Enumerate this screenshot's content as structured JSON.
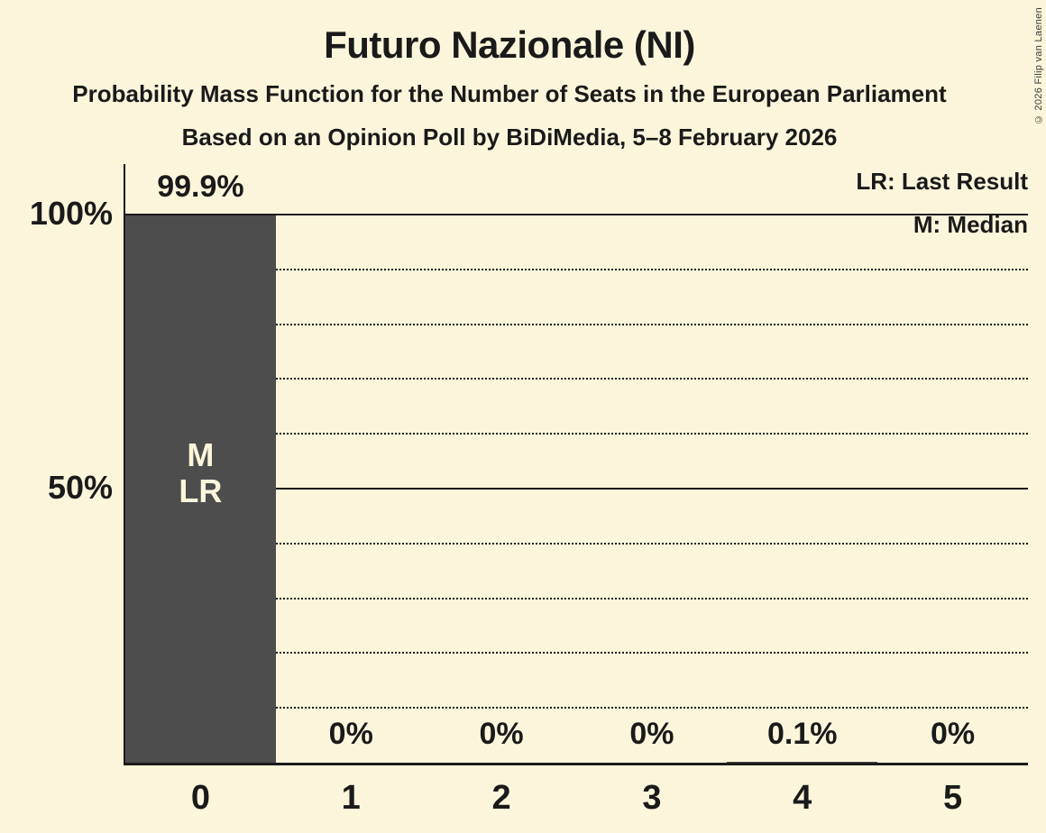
{
  "header": {
    "title": "Futuro Nazionale (NI)",
    "subtitle": "Probability Mass Function for the Number of Seats in the European Parliament",
    "poll_line": "Based on an Opinion Poll by BiDiMedia, 5–8 February 2026",
    "copyright": "© 2026 Filip van Laenen"
  },
  "legend": {
    "last_result": "LR: Last Result",
    "median": "M: Median"
  },
  "colors": {
    "background": "#FBF6DB",
    "bar": "#4D4D4D",
    "text": "#1A1A1A",
    "bar_label_text": "#FBF6DB"
  },
  "chart_data": {
    "type": "bar",
    "title": "Futuro Nazionale (NI)",
    "categories": [
      "0",
      "1",
      "2",
      "3",
      "4",
      "5"
    ],
    "values": [
      99.9,
      0,
      0,
      0,
      0.1,
      0
    ],
    "value_labels": [
      "99.9%",
      "0%",
      "0%",
      "0%",
      "0.1%",
      "0%"
    ],
    "ylim": [
      0,
      100
    ],
    "y_ticks": [
      {
        "value": 100,
        "label": "100%"
      },
      {
        "value": 50,
        "label": "50%"
      }
    ],
    "gridlines": {
      "step": 10,
      "solid_at": [
        50,
        100
      ],
      "minor_style": "dotted"
    },
    "bar_annotation": {
      "category_index": 0,
      "lines": [
        "M",
        "LR"
      ]
    },
    "legend_position": "top-right",
    "grid": true
  }
}
